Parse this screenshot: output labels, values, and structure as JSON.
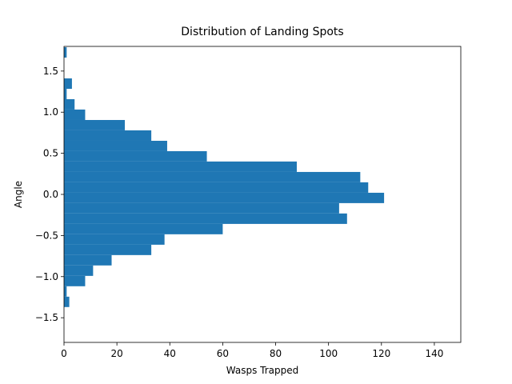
{
  "chart_data": {
    "type": "histogram",
    "orientation": "horizontal",
    "title": "Distribution of Landing Spots",
    "xlabel": "Wasps Trapped",
    "ylabel": "Angle",
    "bins": [
      -1.37,
      -1.244,
      -1.117,
      -0.991,
      -0.864,
      -0.738,
      -0.612,
      -0.485,
      -0.359,
      -0.232,
      -0.106,
      0.02,
      0.147,
      0.273,
      0.4,
      0.526,
      0.652,
      0.779,
      0.905,
      1.032,
      1.158,
      1.284,
      1.411,
      1.537,
      1.664,
      1.79
    ],
    "values": [
      2,
      1,
      8,
      11,
      18,
      33,
      38,
      60,
      107,
      104,
      121,
      115,
      112,
      88,
      54,
      39,
      33,
      23,
      8,
      4,
      1,
      3,
      0,
      0,
      1
    ],
    "color": "#1f77b4",
    "xlim": [
      0,
      150
    ],
    "xticks": [
      0,
      20,
      40,
      60,
      80,
      100,
      120,
      140
    ],
    "ylim": [
      -1.8,
      1.8
    ],
    "yticks": [
      {
        "value": -1.5,
        "label": "−1.5"
      },
      {
        "value": -1.0,
        "label": "−1.0"
      },
      {
        "value": -0.5,
        "label": "−0.5"
      },
      {
        "value": 0.0,
        "label": "0.0"
      },
      {
        "value": 0.5,
        "label": "0.5"
      },
      {
        "value": 1.0,
        "label": "1.0"
      },
      {
        "value": 1.5,
        "label": "1.5"
      }
    ]
  }
}
